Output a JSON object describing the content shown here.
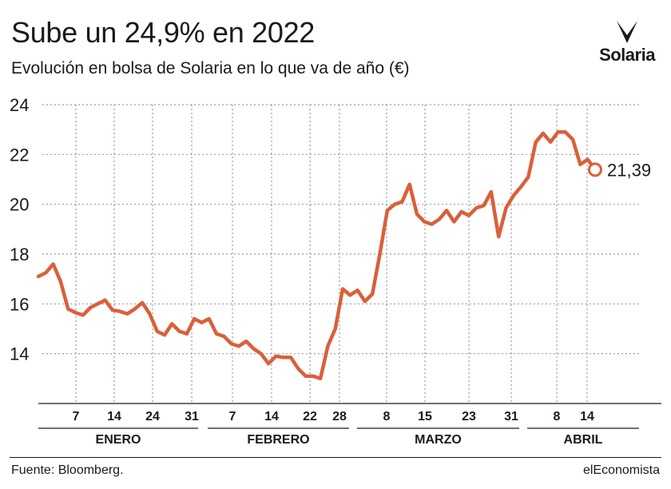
{
  "header": {
    "title": "Sube un 24,9% en 2022",
    "subtitle": "Evolución en bolsa de Solaria en lo que va de año (€)",
    "logo_text": "Solaria"
  },
  "footer": {
    "source": "Fuente: Bloomberg.",
    "brand": "elEconomista"
  },
  "colors": {
    "line": "#d9603b",
    "grid": "#9a9a9a",
    "text": "#1a1a1a"
  },
  "chart_data": {
    "type": "line",
    "x_unit": "trading days 2022",
    "ylim": [
      12,
      24
    ],
    "yticks": [
      14,
      16,
      18,
      20,
      22,
      24
    ],
    "grid": true,
    "last_label": "21,39",
    "months": [
      {
        "name": "ENERO",
        "ticks": [
          "7",
          "14",
          "24",
          "31"
        ]
      },
      {
        "name": "FEBRERO",
        "ticks": [
          "7",
          "14",
          "22",
          "28"
        ]
      },
      {
        "name": "MARZO",
        "ticks": [
          "8",
          "15",
          "23",
          "31"
        ]
      },
      {
        "name": "ABRIL",
        "ticks": [
          "8",
          "14"
        ]
      }
    ],
    "series": [
      {
        "values": [
          17.1,
          17.25,
          17.6,
          16.9,
          15.8,
          15.65,
          15.55,
          15.85,
          16.0,
          16.15,
          15.75,
          15.7,
          15.6,
          15.8,
          16.05,
          15.6,
          14.9,
          14.75,
          15.2,
          14.9,
          14.8,
          15.4,
          15.25,
          15.4,
          14.8,
          14.7,
          14.4,
          14.3,
          14.5,
          14.2,
          14.0,
          13.6,
          13.9,
          13.85,
          13.85,
          13.4,
          13.1,
          13.1,
          13.0,
          14.3,
          15.0,
          16.6,
          16.35,
          16.55,
          16.1,
          16.4,
          18.0,
          19.75,
          20.0,
          20.1,
          20.8,
          19.6,
          19.3,
          19.2,
          19.4,
          19.75,
          19.3,
          19.7,
          19.55,
          19.85,
          19.95,
          20.5,
          18.7,
          19.85,
          20.35,
          20.7,
          21.1,
          22.5,
          22.85,
          22.5,
          22.9,
          22.9,
          22.6,
          21.6,
          21.8,
          21.39
        ]
      }
    ]
  }
}
